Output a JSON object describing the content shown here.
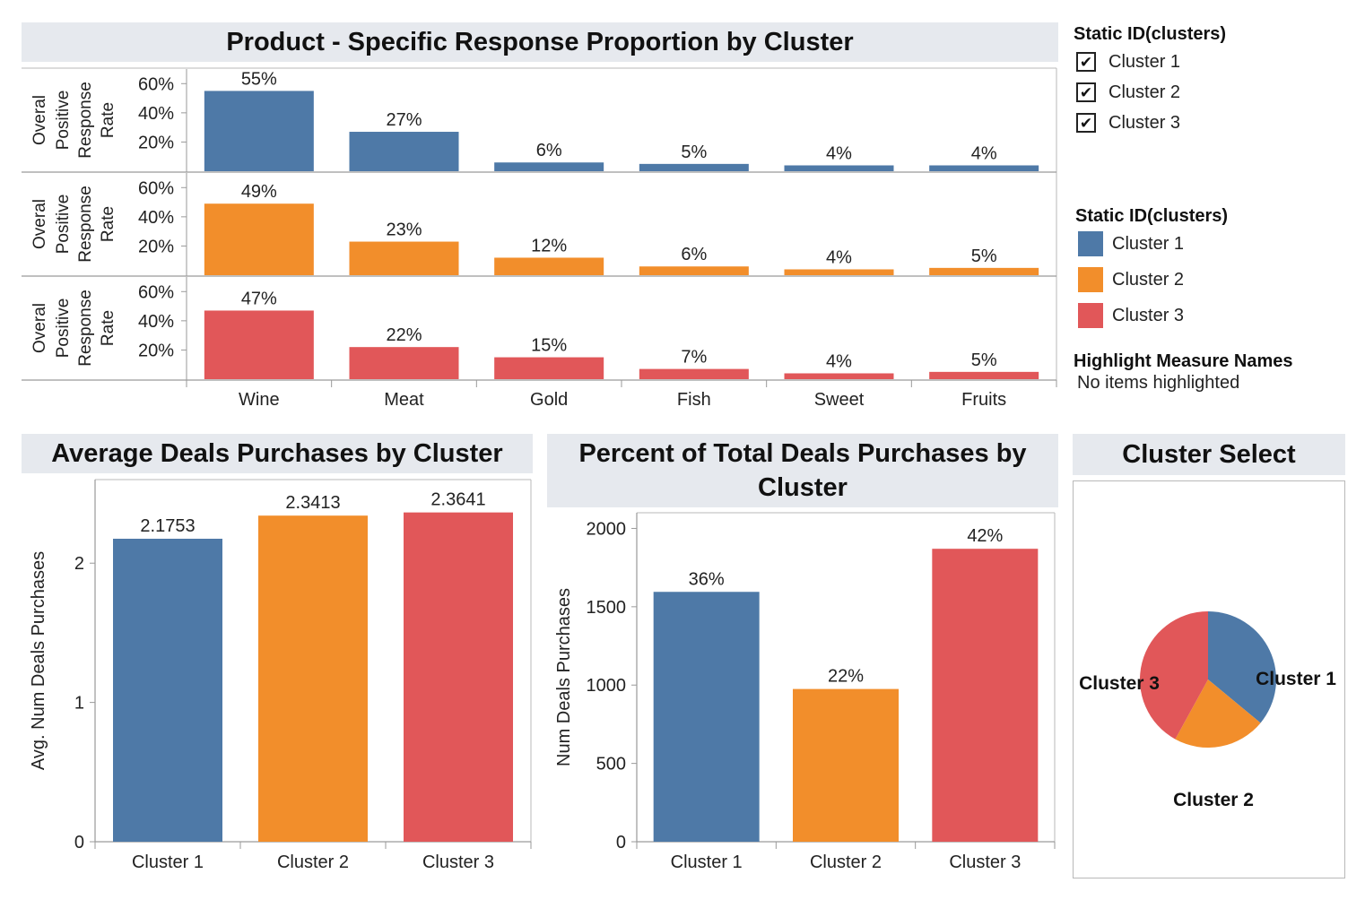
{
  "colors": {
    "cluster1": "#4e79a7",
    "cluster2": "#f28e2b",
    "cluster3": "#e15759",
    "title_bg": "#e6e9ee"
  },
  "legends": {
    "filter_title": "Static ID(clusters)",
    "filter_items": [
      {
        "label": "Cluster 1",
        "checked": "✔"
      },
      {
        "label": "Cluster 2",
        "checked": "✔"
      },
      {
        "label": "Cluster 3",
        "checked": "✔"
      }
    ],
    "color_title": "Static ID(clusters)",
    "color_items": [
      {
        "label": "Cluster 1"
      },
      {
        "label": "Cluster 2"
      },
      {
        "label": "Cluster 3"
      }
    ],
    "highlight_title": "Highlight Measure Names",
    "highlight_value": "No items highlighted"
  },
  "chart_data": [
    {
      "type": "bar",
      "title": "Product - Specific Response Proportion by Cluster",
      "ylabel": "Overal Positive Response Rate",
      "ylabel_lines": [
        "Overal",
        "Positive",
        "Response",
        "Rate"
      ],
      "ylim": [
        0,
        0.7
      ],
      "yticks": [
        0.2,
        0.4,
        0.6
      ],
      "ytick_labels": [
        "20%",
        "40%",
        "60%"
      ],
      "categories": [
        "Wine",
        "Meat",
        "Gold",
        "Fish",
        "Sweet",
        "Fruits"
      ],
      "series": [
        {
          "name": "Cluster 1",
          "values": [
            0.55,
            0.27,
            0.06,
            0.05,
            0.04,
            0.04
          ],
          "labels": [
            "55%",
            "27%",
            "6%",
            "5%",
            "4%",
            "4%"
          ]
        },
        {
          "name": "Cluster 2",
          "values": [
            0.49,
            0.23,
            0.12,
            0.06,
            0.04,
            0.05
          ],
          "labels": [
            "49%",
            "23%",
            "12%",
            "6%",
            "4%",
            "5%"
          ]
        },
        {
          "name": "Cluster 3",
          "values": [
            0.47,
            0.22,
            0.15,
            0.07,
            0.04,
            0.05
          ],
          "labels": [
            "47%",
            "22%",
            "15%",
            "7%",
            "4%",
            "5%"
          ]
        }
      ],
      "grid": false
    },
    {
      "type": "bar",
      "title": "Average Deals Purchases by Cluster",
      "ylabel": "Avg. Num Deals Purchases",
      "ylim": [
        0,
        2.6
      ],
      "yticks": [
        0,
        1,
        2
      ],
      "ytick_labels": [
        "0",
        "1",
        "2"
      ],
      "categories": [
        "Cluster 1",
        "Cluster 2",
        "Cluster 3"
      ],
      "values": [
        2.1753,
        2.3413,
        2.3641
      ],
      "labels": [
        "2.1753",
        "2.3413",
        "2.3641"
      ],
      "grid": false
    },
    {
      "type": "bar",
      "title": "Percent of Total Deals Purchases by Cluster",
      "title_lines": [
        "Percent of Total Deals Purchases by",
        "Cluster"
      ],
      "ylabel": "Num Deals Purchases",
      "ylim": [
        0,
        2100
      ],
      "yticks": [
        0,
        500,
        1000,
        1500,
        2000
      ],
      "ytick_labels": [
        "0",
        "500",
        "1000",
        "1500",
        "2000"
      ],
      "categories": [
        "Cluster 1",
        "Cluster 2",
        "Cluster 3"
      ],
      "values": [
        1595,
        975,
        1870
      ],
      "labels": [
        "36%",
        "22%",
        "42%"
      ],
      "grid": false
    },
    {
      "type": "pie",
      "title": "Cluster Select",
      "categories": [
        "Cluster 1",
        "Cluster 2",
        "Cluster 3"
      ],
      "values": [
        0.36,
        0.22,
        0.42
      ]
    }
  ]
}
